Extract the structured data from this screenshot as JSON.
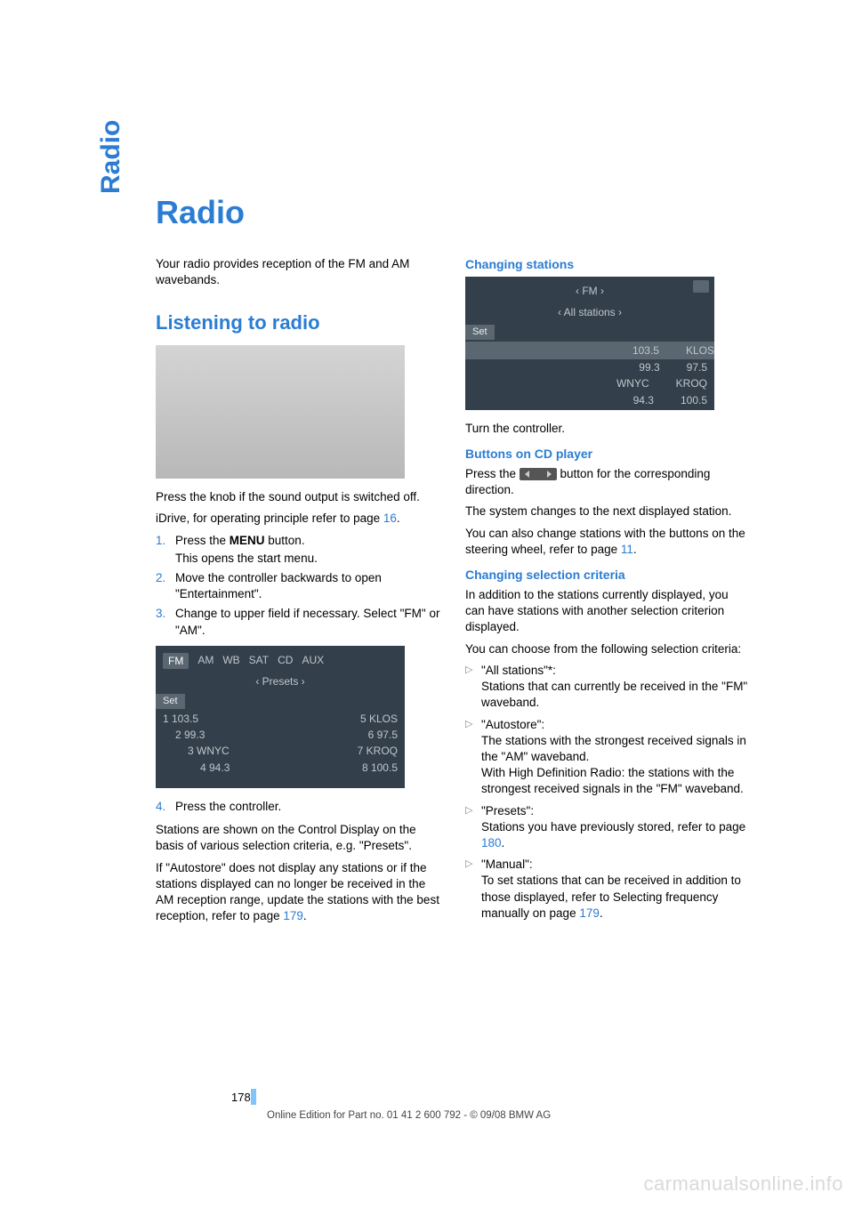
{
  "sidetab": "Radio",
  "title": "Radio",
  "intro": "Your radio provides reception of the FM and AM wavebands.",
  "h2_listening": "Listening to radio",
  "press_knob": "Press the knob if the sound output is switched off.",
  "idrive_pre": "iDrive, for operating principle refer to page ",
  "idrive_link": "16",
  "idrive_post": ".",
  "steps": [
    {
      "n": "1.",
      "t": "Press the ",
      "bold": "MENU",
      "t2": " button.",
      "sub": "This opens the start menu."
    },
    {
      "n": "2.",
      "t": "Move the controller backwards to open \"Entertainment\"."
    },
    {
      "n": "3.",
      "t": "Change to upper field if necessary. Select \"FM\" or \"AM\"."
    }
  ],
  "screen1": {
    "tabs": [
      "FM",
      "AM",
      "WB",
      "SAT",
      "CD",
      "AUX"
    ],
    "sub": "‹  Presets  ›",
    "set": "Set",
    "rows": [
      [
        "1 103.5",
        "5 KLOS"
      ],
      [
        "2 99.3",
        "6 97.5"
      ],
      [
        "3 WNYC",
        "7 KROQ"
      ],
      [
        "4 94.3",
        "8 100.5"
      ]
    ]
  },
  "step4_n": "4.",
  "step4_t": "Press the controller.",
  "stations_p": "Stations are shown on the Control Display on the basis of various selection criteria, e.g. \"Presets\".",
  "autostore_p_pre": "If \"Autostore\" does not display any stations or if the stations displayed can no longer be received in the AM reception range, update the stations with the best reception, refer to page ",
  "autostore_link": "179",
  "autostore_post": ".",
  "h3_changing": "Changing stations",
  "screen2": {
    "top": "‹   FM   ›",
    "sub": "‹  All stations  ›",
    "set": "Set",
    "rows": [
      [
        "103.5",
        "KLOS"
      ],
      [
        "99.3",
        "97.5"
      ],
      [
        "WNYC",
        "KROQ"
      ],
      [
        "94.3",
        "100.5"
      ]
    ],
    "hl_index": 0
  },
  "turn_controller": "Turn the controller.",
  "h3_buttons": "Buttons on CD player",
  "press_btn_pre": "Press the ",
  "press_btn_post": " button for the corresponding direction.",
  "system_changes": "The system changes to the next displayed station.",
  "steering_pre": "You can also change stations with the buttons on the steering wheel, refer to page ",
  "steering_link": "11",
  "steering_post": ".",
  "h3_criteria": "Changing selection criteria",
  "criteria_p1": "In addition to the stations currently displayed, you can have stations with another selection criterion displayed.",
  "criteria_p2": "You can choose from the following selection criteria:",
  "criteria": [
    {
      "head": "\"All stations\"*:",
      "body": "Stations that can currently be received in the \"FM\" waveband."
    },
    {
      "head": "\"Autostore\":",
      "body": "The stations with the strongest received signals in the \"AM\" waveband.\nWith High Definition Radio: the stations with the strongest received signals in the \"FM\" waveband."
    },
    {
      "head": "\"Presets\":",
      "body_pre": "Stations you have previously stored, refer to page ",
      "link": "180",
      "body_post": "."
    },
    {
      "head": "\"Manual\":",
      "body_pre": "To set stations that can be received in addition to those displayed, refer to Selecting frequency manually on page ",
      "link": "179",
      "body_post": "."
    }
  ],
  "pagenum": "178",
  "footer": "Online Edition for Part no. 01 41 2 600 792 - © 09/08 BMW AG",
  "watermark": "carmanualsonline.info"
}
